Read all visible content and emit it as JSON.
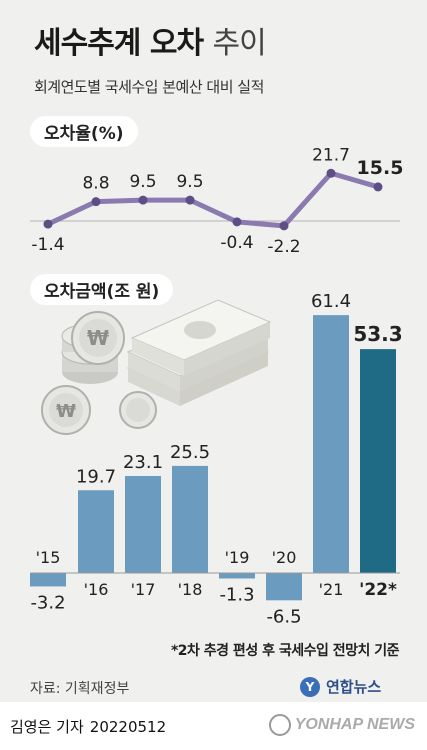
{
  "header": {
    "title": "세수추계 오차",
    "title_suffix": "추이",
    "subtitle": "회계연도별 국세수입 본예산 대비 실적"
  },
  "section_rate": {
    "label": "오차율(%)"
  },
  "section_amount": {
    "label": "오차금액(조 원)"
  },
  "footnote": "*2차 추경 편성 후 국세수입 전망치 기준",
  "source": "자료: 기획재정부",
  "logo": {
    "name": "연합뉴스"
  },
  "bottom": {
    "reporter": "김영은 기자",
    "date": "20220512",
    "brand": "YONHAP NEWS"
  },
  "colors": {
    "line": "#8a7aaf",
    "bar": "#6b9bbf",
    "bar_highlight": "#1f6a85"
  },
  "chart_data": [
    {
      "type": "line",
      "title": "오차율(%)",
      "x": [
        "'15",
        "'16",
        "'17",
        "'18",
        "'19",
        "'20",
        "'21",
        "'22*"
      ],
      "series": [
        {
          "values": [
            -1.4,
            8.8,
            9.5,
            9.5,
            -0.4,
            -2.2,
            21.7,
            15.5
          ]
        }
      ],
      "data_labels": [
        "-1.4",
        "8.8",
        "9.5",
        "9.5",
        "-0.4",
        "-2.2",
        "21.7",
        "15.5"
      ],
      "ylim": [
        -5,
        25
      ]
    },
    {
      "type": "bar",
      "title": "오차금액(조 원)",
      "categories": [
        "'15",
        "'16",
        "'17",
        "'18",
        "'19",
        "'20",
        "'21",
        "'22*"
      ],
      "values": [
        -3.2,
        19.7,
        23.1,
        25.5,
        -1.3,
        -6.5,
        61.4,
        53.3
      ],
      "data_labels": [
        "-3.2",
        "19.7",
        "23.1",
        "25.5",
        "-1.3",
        "-6.5",
        "61.4",
        "53.3"
      ],
      "highlight_index": 7,
      "ylim": [
        -8,
        65
      ]
    }
  ]
}
